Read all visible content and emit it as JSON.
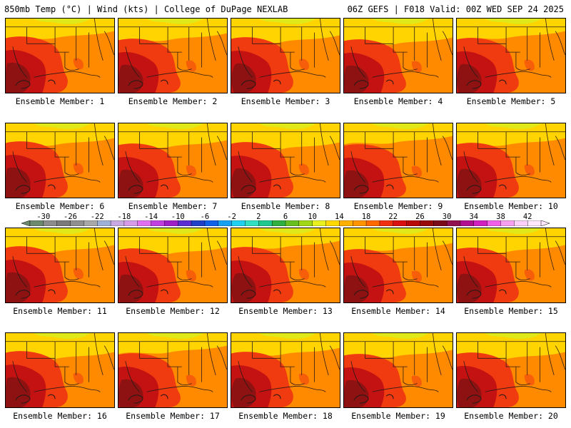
{
  "header": {
    "left": "850mb Temp (°C) | Wind (kts) | College of DuPage NEXLAB",
    "right": "06Z GEFS | F018 Valid: 00Z WED SEP 24 2025"
  },
  "panels": [
    {
      "label": "Ensemble Member: 1"
    },
    {
      "label": "Ensemble Member: 2"
    },
    {
      "label": "Ensemble Member: 3"
    },
    {
      "label": "Ensemble Member: 4"
    },
    {
      "label": "Ensemble Member: 5"
    },
    {
      "label": "Ensemble Member: 6"
    },
    {
      "label": "Ensemble Member: 7"
    },
    {
      "label": "Ensemble Member: 8"
    },
    {
      "label": "Ensemble Member: 9"
    },
    {
      "label": "Ensemble Member: 10"
    },
    {
      "label": "Ensemble Member: 11"
    },
    {
      "label": "Ensemble Member: 12"
    },
    {
      "label": "Ensemble Member: 13"
    },
    {
      "label": "Ensemble Member: 14"
    },
    {
      "label": "Ensemble Member: 15"
    },
    {
      "label": "Ensemble Member: 16"
    },
    {
      "label": "Ensemble Member: 17"
    },
    {
      "label": "Ensemble Member: 18"
    },
    {
      "label": "Ensemble Member: 19"
    },
    {
      "label": "Ensemble Member: 20"
    }
  ],
  "colorbar": {
    "labels": [
      "-30",
      "-26",
      "-22",
      "-18",
      "-14",
      "-10",
      "-6",
      "-2",
      "2",
      "6",
      "10",
      "14",
      "18",
      "22",
      "26",
      "30",
      "34",
      "38",
      "42"
    ],
    "min": -32,
    "max": 44,
    "step": 2,
    "colors": [
      "#6e8a6e",
      "#8c8c8c",
      "#7a7a7a",
      "#8f8f8f",
      "#a8a8a8",
      "#9fb0d6",
      "#c8a8e0",
      "#d59ae8",
      "#e070f0",
      "#c040e0",
      "#a020c8",
      "#5a2ed0",
      "#2040c8",
      "#1060e8",
      "#18a0f0",
      "#20d0f0",
      "#30e0c0",
      "#20c890",
      "#30b040",
      "#68c020",
      "#a0d818",
      "#e8f020",
      "#ffd800",
      "#ffb000",
      "#ff9400",
      "#ff6a00",
      "#f03010",
      "#d81010",
      "#b80808",
      "#980a0a",
      "#7a0a1a",
      "#901050",
      "#b01090",
      "#d020c0",
      "#f060e8",
      "#f8a0f0",
      "#fcd0f8",
      "#ffe8ff"
    ]
  },
  "map_fill": {
    "base": "#ff8a00",
    "north": "#ffd400",
    "far_north": "#d8ec20",
    "warm": "#f03a10",
    "hot": "#c41212",
    "core": "#8e1212",
    "line": "#2b1a16"
  }
}
